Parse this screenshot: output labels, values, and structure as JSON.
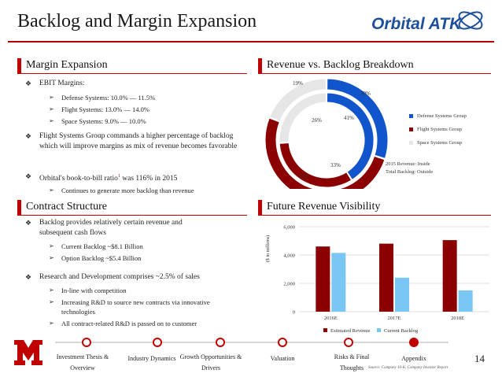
{
  "page": {
    "title": "Backlog and Margin Expansion",
    "page_number": "14"
  },
  "logo": {
    "text": "Orbital ATK"
  },
  "sections": {
    "margin": {
      "heading": "Margin Expansion",
      "bullet1": "EBIT Margins:",
      "sub1": [
        "Defense Systems: 10.0% — 11.5%",
        "Flight Systems: 13.0% — 14.0%",
        "Space Systems: 9.0% — 10.0%"
      ],
      "bullet2": "Flight Systems Group commands a higher percentage of backlog which will improve margins as mix of revenue becomes favorable",
      "bullet3_pre": "Orbital's book-to-bill ratio",
      "bullet3_sup": "1",
      "bullet3_post": " was 116% in 2015",
      "sub3": "Continues to generate more backlog than revenue"
    },
    "contract": {
      "heading": "Contract Structure",
      "bullet1": "Backlog provides relatively certain revenue and subsequent cash flows",
      "sub1": [
        "Current Backlog ~$8.1 Billion",
        "Option Backlog ~$5.4 Billion"
      ],
      "bullet2": "Research and Development comprises ~2.5% of sales",
      "sub2": [
        "In-line with competition",
        "Increasing R&D to source new contracts via innovative technologies",
        "All contract-related R&D is passed on to customer"
      ]
    },
    "revenue": {
      "heading": "Revenue vs. Backlog Breakdown",
      "note": [
        "2015 Revenue: Inside",
        "Total Backlog: Outside"
      ]
    },
    "future": {
      "heading": "Future Revenue Visibility"
    }
  },
  "donut": {
    "inner_labels": [
      "41%",
      "33%",
      "26%"
    ],
    "outer_labels": [
      "30%",
      "51%",
      "19%"
    ]
  },
  "legend": {
    "items": [
      "Defense Systems Group",
      "Flight Systems Group",
      "Space Systems Group"
    ],
    "colors": [
      "#1155cc",
      "#8b0000",
      "#e6e6e6"
    ]
  },
  "chart_data": [
    {
      "type": "pie",
      "categories": [
        "Defense Systems Group",
        "Flight Systems Group",
        "Space Systems Group"
      ],
      "series": [
        {
          "name": "2015 Revenue",
          "values": [
            41,
            33,
            26
          ]
        },
        {
          "name": "Total Backlog",
          "values": [
            30,
            51,
            19
          ]
        }
      ]
    },
    {
      "type": "bar",
      "title": "",
      "ylabel": "($ in millions)",
      "categories": [
        "2016E",
        "2017E",
        "2018E"
      ],
      "series": [
        {
          "name": "Estimated Revenue",
          "values": [
            4600,
            4800,
            5050
          ]
        },
        {
          "name": "Current Backlog",
          "values": [
            4150,
            2400,
            1500
          ]
        }
      ],
      "ylim": [
        0,
        6000
      ],
      "yticks": [
        "0",
        "2,000",
        "4,000",
        "6,000"
      ],
      "colors": [
        "#8b0000",
        "#7ac7f5"
      ],
      "grid": true,
      "legend": "bottom"
    }
  ],
  "nav": {
    "items": [
      "Investment Thesis & Overview",
      "Industry Dynamics",
      "Growth Opportunities & Drivers",
      "Valuation",
      "Risks & Final Thoughts",
      "Appendix"
    ]
  },
  "footer": {
    "source": "Source: Company 10-K, Company Investor Report"
  }
}
